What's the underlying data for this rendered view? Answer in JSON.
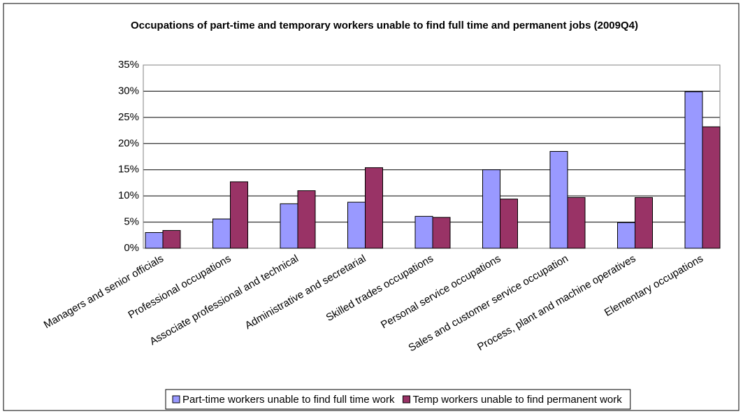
{
  "chart_data": {
    "type": "bar",
    "title": "Occupations of part-time and temporary workers unable to find full time and permanent jobs (2009Q4)",
    "categories": [
      "Managers and senior officials",
      "Professional occupations",
      "Associate professional and technical",
      "Administrative and secretarial",
      "Skilled trades occupations",
      "Personal service occupations",
      "Sales and customer service occupation",
      "Process, plant and machine operatives",
      "Elementary occupations"
    ],
    "series": [
      {
        "name": "Part-time workers unable to find full time work",
        "color": "#9999ff",
        "values": [
          3.0,
          5.6,
          8.5,
          8.8,
          6.1,
          15.0,
          18.5,
          4.9,
          29.9
        ]
      },
      {
        "name": "Temp workers unable to find permanent work",
        "color": "#993366",
        "values": [
          3.4,
          12.7,
          11.0,
          15.4,
          5.9,
          9.4,
          9.7,
          9.7,
          23.2
        ]
      }
    ],
    "ylim": [
      0,
      35
    ],
    "yticks": [
      {
        "value": 0,
        "label": "0%"
      },
      {
        "value": 5,
        "label": "5%"
      },
      {
        "value": 10,
        "label": "10%"
      },
      {
        "value": 15,
        "label": "15%"
      },
      {
        "value": 20,
        "label": "20%"
      },
      {
        "value": 25,
        "label": "25%"
      },
      {
        "value": 30,
        "label": "30%"
      },
      {
        "value": 35,
        "label": "35%"
      }
    ],
    "grid": true,
    "legend": "bottom"
  }
}
